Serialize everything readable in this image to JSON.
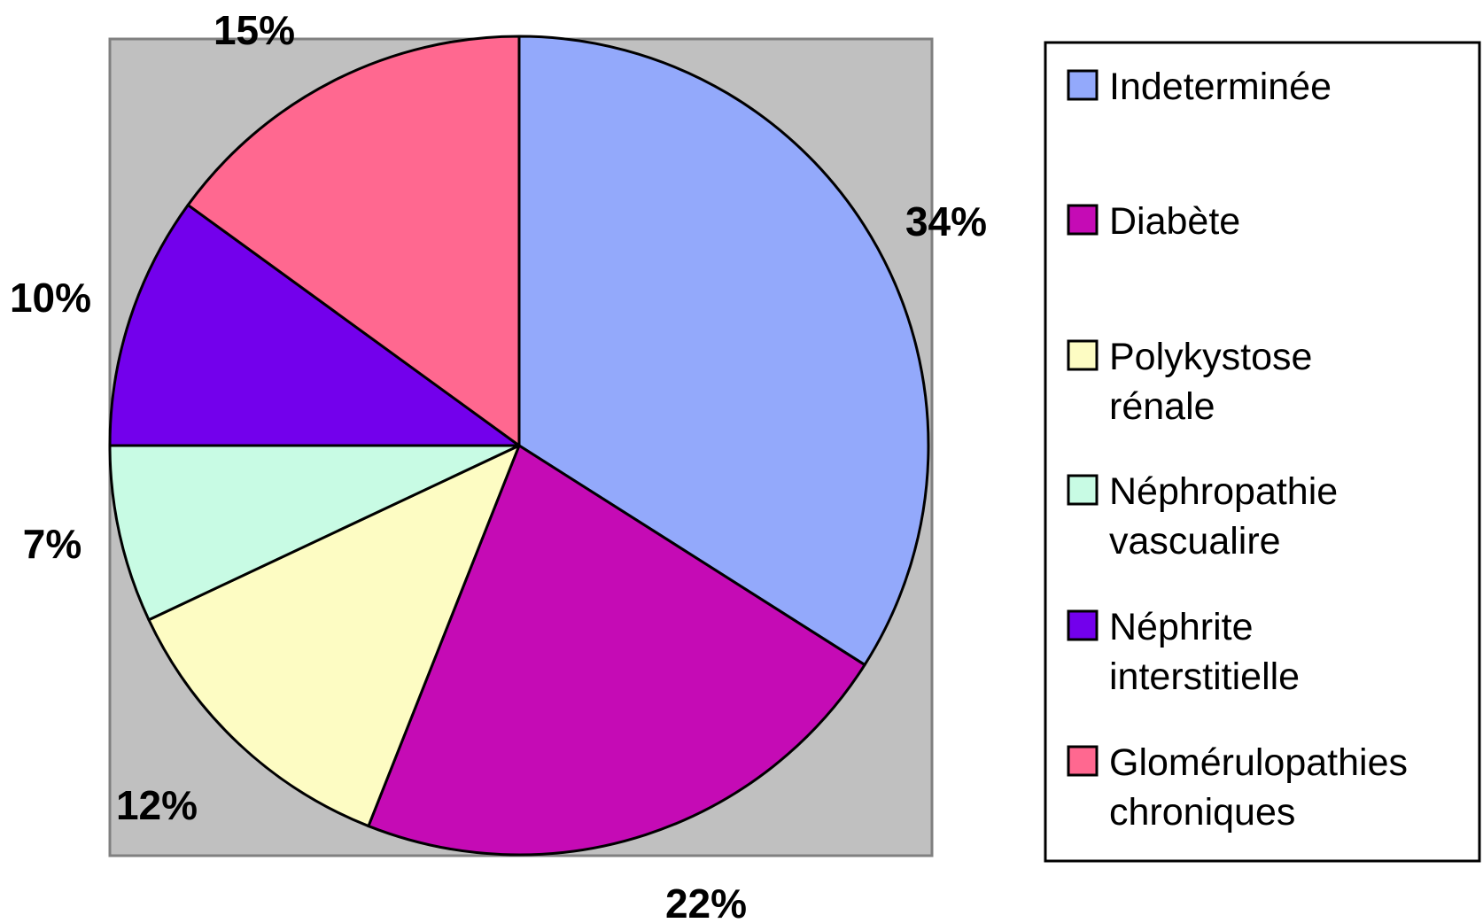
{
  "chart_data": {
    "type": "pie",
    "title": "",
    "legend_position": "right",
    "series": [
      {
        "labels": [
          "Indeterminée",
          "Diabète",
          "Polykystose rénale",
          "Néphropathie vascualire",
          "Néphrite interstitielle",
          "Glomérulopathies chroniques"
        ],
        "values": [
          34,
          22,
          12,
          7,
          10,
          15
        ],
        "data_labels": [
          "34%",
          "22%",
          "12%",
          "7%",
          "10%",
          "15%"
        ],
        "colors": [
          "#93a9fb",
          "#c50bb5",
          "#fdfcc3",
          "#c8fbe4",
          "#7300ec",
          "#ff6890"
        ]
      }
    ],
    "legend": [
      {
        "lines": [
          "Indeterminée"
        ]
      },
      {
        "lines": [
          "Diabète"
        ]
      },
      {
        "lines": [
          "Polykystose",
          "rénale"
        ]
      },
      {
        "lines": [
          "Néphropathie",
          "vascualire"
        ]
      },
      {
        "lines": [
          "Néphrite",
          "interstitielle"
        ]
      },
      {
        "lines": [
          "Glomérulopathies",
          "chroniques"
        ]
      }
    ],
    "plot_background": "#c0c0c0",
    "plot_border": "#808080"
  }
}
